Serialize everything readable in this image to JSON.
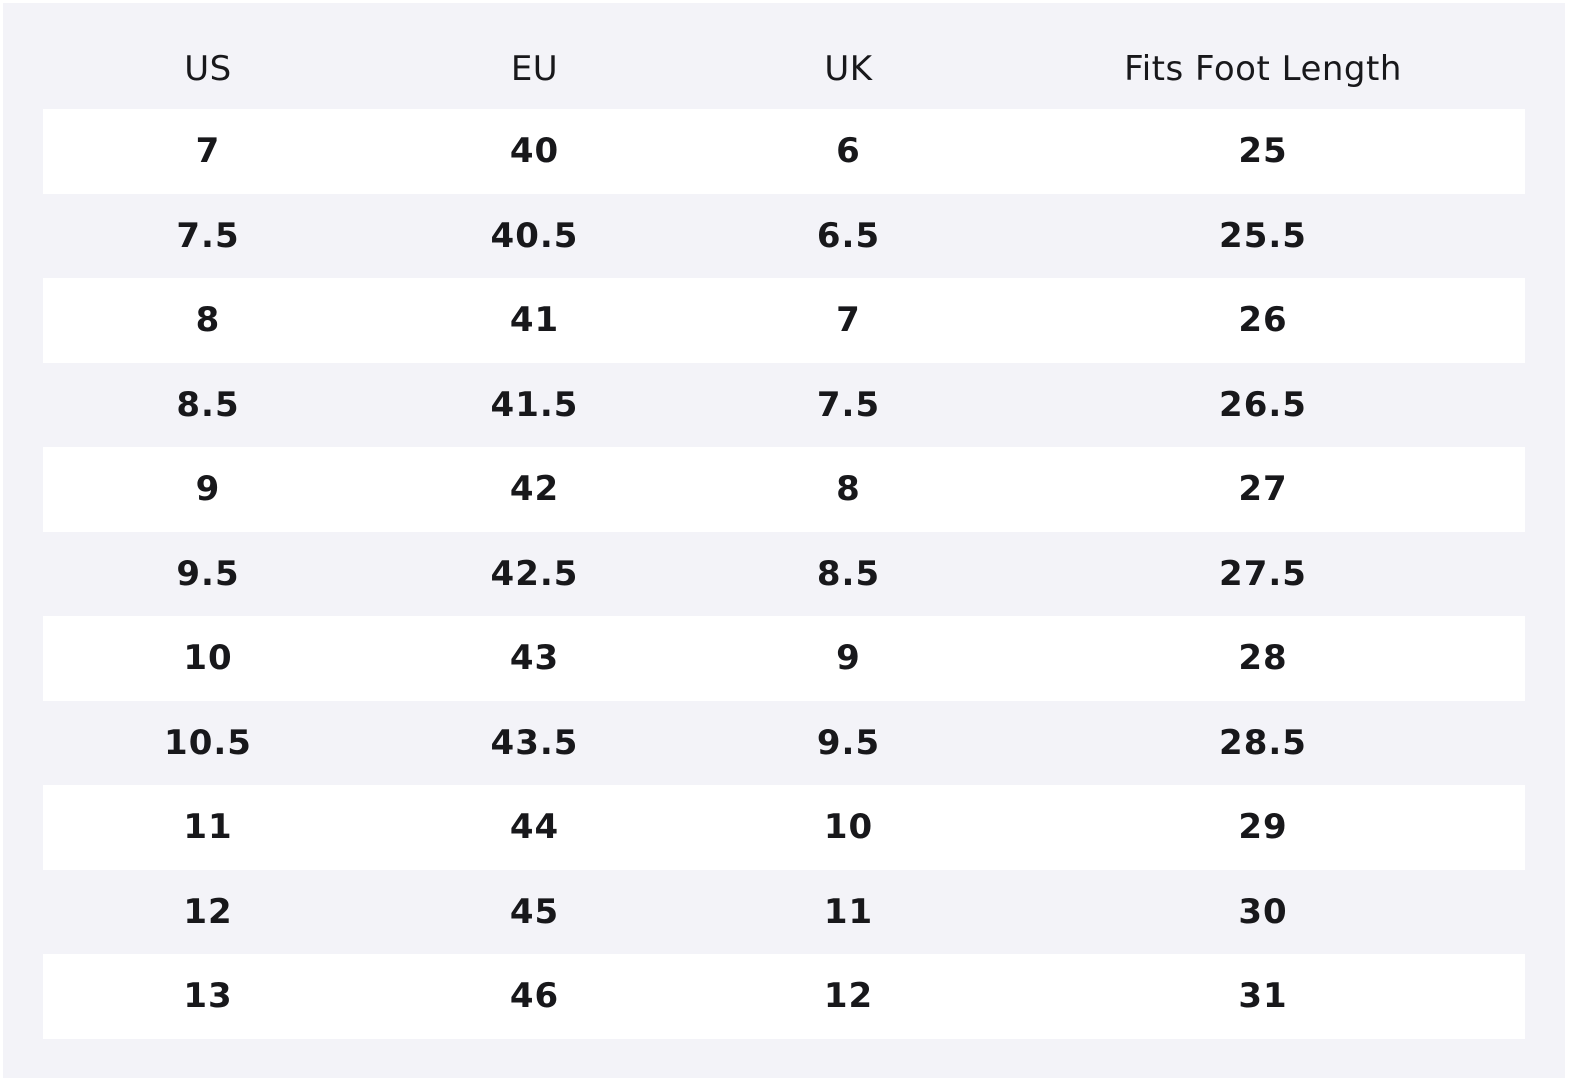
{
  "table": {
    "headers": [
      "US",
      "EU",
      "UK",
      "Fits Foot Length"
    ],
    "rows": [
      [
        "7",
        "40",
        "6",
        "25"
      ],
      [
        "7.5",
        "40.5",
        "6.5",
        "25.5"
      ],
      [
        "8",
        "41",
        "7",
        "26"
      ],
      [
        "8.5",
        "41.5",
        "7.5",
        "26.5"
      ],
      [
        "9",
        "42",
        "8",
        "27"
      ],
      [
        "9.5",
        "42.5",
        "8.5",
        "27.5"
      ],
      [
        "10",
        "43",
        "9",
        "28"
      ],
      [
        "10.5",
        "43.5",
        "9.5",
        "28.5"
      ],
      [
        "11",
        "44",
        "10",
        "29"
      ],
      [
        "12",
        "45",
        "11",
        "30"
      ],
      [
        "13",
        "46",
        "12",
        "31"
      ]
    ]
  },
  "colors": {
    "background": "#f3f3f8",
    "row_highlight": "#ffffff",
    "text": "#18181b"
  }
}
